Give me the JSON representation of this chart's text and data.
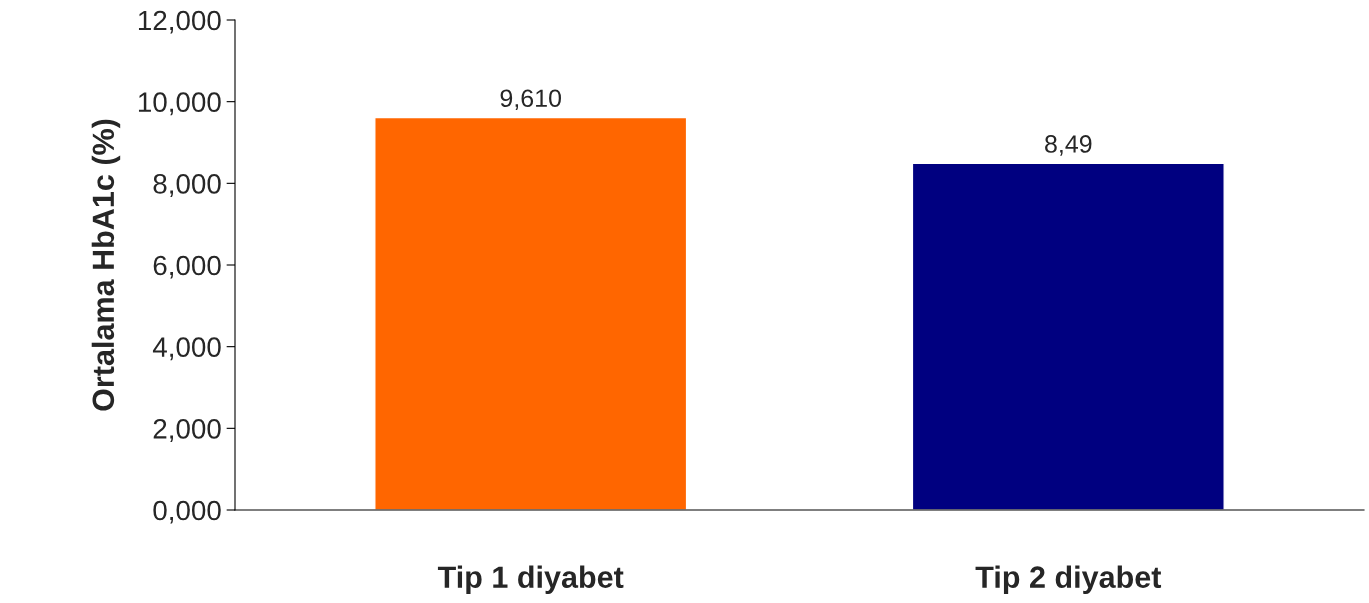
{
  "chart_data": {
    "type": "bar",
    "ylabel": "Ortalama HbA1c (%)",
    "categories": [
      "Tip 1 diyabet",
      "Tip 2 diyabet"
    ],
    "values": [
      9.61,
      8.49
    ],
    "colors": [
      "#ff6600",
      "#000080"
    ],
    "value_labels": [
      "9,610",
      "8,49"
    ],
    "ylim": [
      0,
      12
    ],
    "yticks": [
      {
        "value": 0,
        "label": "0,000"
      },
      {
        "value": 2,
        "label": "2,000"
      },
      {
        "value": 4,
        "label": "4,000"
      },
      {
        "value": 6,
        "label": "6,000"
      },
      {
        "value": 8,
        "label": "8,000"
      },
      {
        "value": 10,
        "label": "10,000"
      },
      {
        "value": 12,
        "label": "12,000"
      }
    ],
    "grid": false,
    "legend": false
  }
}
